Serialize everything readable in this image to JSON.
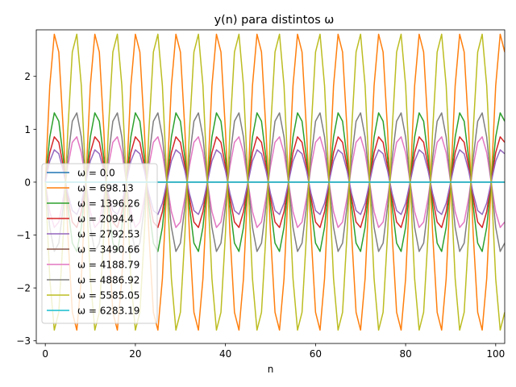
{
  "chart_data": {
    "type": "line",
    "title": "y(n) para distintos ω",
    "xlabel": "n",
    "ylabel": "",
    "xlim": [
      -2,
      102
    ],
    "ylim": [
      -3.05,
      2.88
    ],
    "xticks": [
      0,
      20,
      40,
      60,
      80,
      100
    ],
    "xtick_labels": [
      "0",
      "20",
      "40",
      "60",
      "80",
      "100"
    ],
    "yticks": [
      -3,
      -2,
      -1,
      0,
      1,
      2
    ],
    "ytick_labels": [
      "−3",
      "−2",
      "−1",
      "0",
      "1",
      "2"
    ],
    "grid": false,
    "legend_position": "lower-left",
    "n_range": [
      0,
      102
    ],
    "series": [
      {
        "name": "ω = 0.0",
        "color": "#1f77b4",
        "omega": 0.0,
        "amplitude": 0.0
      },
      {
        "name": "ω = 698.13",
        "color": "#ff7f0e",
        "omega": 698.13,
        "amplitude": 2.84
      },
      {
        "name": "ω = 1396.26",
        "color": "#2ca02c",
        "omega": 1396.26,
        "amplitude": 1.33
      },
      {
        "name": "ω = 2094.4",
        "color": "#d62728",
        "omega": 2094.4,
        "amplitude": 0.87
      },
      {
        "name": "ω = 2792.53",
        "color": "#9467bd",
        "omega": 2792.53,
        "amplitude": 0.62
      },
      {
        "name": "ω = 3490.66",
        "color": "#8c564b",
        "omega": 3490.66,
        "amplitude": 0.0
      },
      {
        "name": "ω = 4188.79",
        "color": "#e377c2",
        "omega": 4188.79,
        "amplitude": -0.87
      },
      {
        "name": "ω = 4886.92",
        "color": "#7f7f7f",
        "omega": 4886.92,
        "amplitude": -1.33
      },
      {
        "name": "ω = 5585.05",
        "color": "#bcbd22",
        "omega": 5585.05,
        "amplitude": -2.84
      },
      {
        "name": "ω = 6283.19",
        "color": "#17becf",
        "omega": 6283.19,
        "amplitude": 0.0
      }
    ]
  }
}
